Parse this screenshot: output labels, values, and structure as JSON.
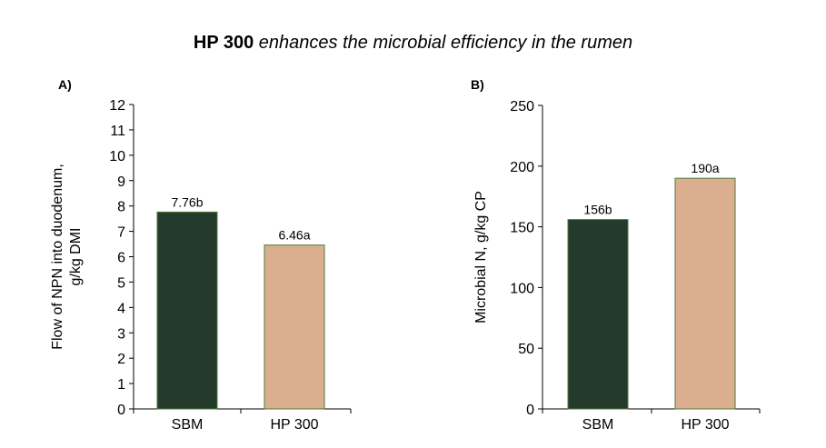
{
  "title": {
    "strong": "HP 300",
    "rest": " enhances the microbial efficiency in the rumen"
  },
  "colors": {
    "SBM": "#243a2c",
    "HP 300": "#dbae90",
    "bar_outline": "#4e7a3c",
    "axis": "#000000"
  },
  "chart_data": [
    {
      "type": "bar",
      "panel": "A)",
      "categories": [
        "SBM",
        "HP 300"
      ],
      "values": [
        7.76,
        6.46
      ],
      "data_labels": [
        "7.76b",
        "6.46a"
      ],
      "ylabel_lines": [
        "Flow of NPN into duodenum,",
        "g/kg DMI"
      ],
      "ylim": [
        0,
        12
      ],
      "yticks": [
        0,
        1,
        2,
        3,
        4,
        5,
        6,
        7,
        8,
        9,
        10,
        11,
        12
      ],
      "grid": false
    },
    {
      "type": "bar",
      "panel": "B)",
      "categories": [
        "SBM",
        "HP 300"
      ],
      "values": [
        156,
        190
      ],
      "data_labels": [
        "156b",
        "190a"
      ],
      "ylabel_lines": [
        "Microbial N, g/kg CP"
      ],
      "ylim": [
        0,
        250
      ],
      "yticks": [
        0,
        50,
        100,
        150,
        200,
        250
      ],
      "grid": false
    }
  ]
}
